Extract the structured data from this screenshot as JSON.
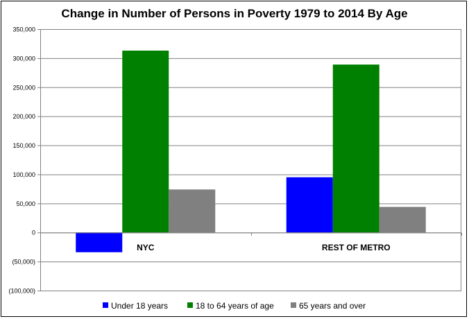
{
  "chart_data": {
    "type": "bar",
    "title": "Change in Number of Persons in Poverty 1979 to 2014 By Age",
    "xlabel": "",
    "ylabel": "",
    "categories": [
      "NYC",
      "REST OF METRO"
    ],
    "series": [
      {
        "name": "Under 18 years",
        "color": "#0000ff",
        "values": [
          -34000,
          95000
        ]
      },
      {
        "name": "18 to 64 years of age",
        "color": "#008000",
        "values": [
          313000,
          289000
        ]
      },
      {
        "name": "65 years and over",
        "color": "#808080",
        "values": [
          74000,
          44000
        ]
      }
    ],
    "ylim": [
      -100000,
      350000
    ],
    "yticks": [
      350000,
      300000,
      250000,
      200000,
      150000,
      100000,
      50000,
      0,
      -50000,
      -100000
    ],
    "ytick_labels": [
      "350,000",
      "300,000",
      "250,000",
      "200,000",
      "150,000",
      "100,000",
      "50,000",
      "0",
      "(50,000)",
      "(100,000)"
    ],
    "grid": true,
    "legend": "bottom"
  }
}
